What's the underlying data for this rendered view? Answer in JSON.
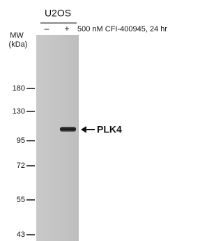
{
  "header": {
    "cell_line": "U2OS",
    "lanes": [
      "–",
      "+"
    ],
    "treatment": "500 nM CFI-400945,  24 hr"
  },
  "mw": {
    "title": "MW",
    "unit": "(kDa)",
    "markers": [
      "180",
      "130",
      "95",
      "72",
      "55",
      "43"
    ]
  },
  "band": {
    "label": "PLK4"
  }
}
